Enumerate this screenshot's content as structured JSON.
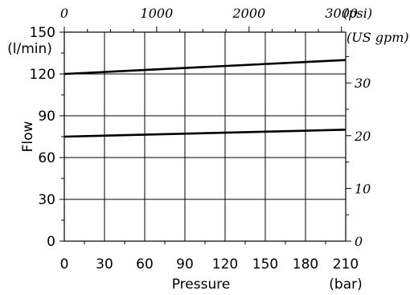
{
  "chart_data": {
    "type": "line",
    "xlabel": "Pressure",
    "xunit": "(bar)",
    "ylabel": "Flow",
    "yunit": "(l/min)",
    "top_axis_unit": "(psi)",
    "right_axis_unit": "(US gpm)",
    "x_ticks": [
      "0",
      "30",
      "60",
      "90",
      "120",
      "150",
      "180",
      "210"
    ],
    "y_ticks": [
      "0",
      "30",
      "60",
      "90",
      "120",
      "150"
    ],
    "top_ticks": [
      "0",
      "1000",
      "2000",
      "3000"
    ],
    "right_ticks": [
      "0",
      "10",
      "20",
      "30"
    ],
    "xlim": [
      0,
      210
    ],
    "ylim": [
      0,
      150
    ],
    "grid": true,
    "series": [
      {
        "x": [
          0,
          210
        ],
        "y": [
          120,
          130
        ]
      },
      {
        "x": [
          0,
          210
        ],
        "y": [
          75,
          80
        ]
      }
    ]
  }
}
